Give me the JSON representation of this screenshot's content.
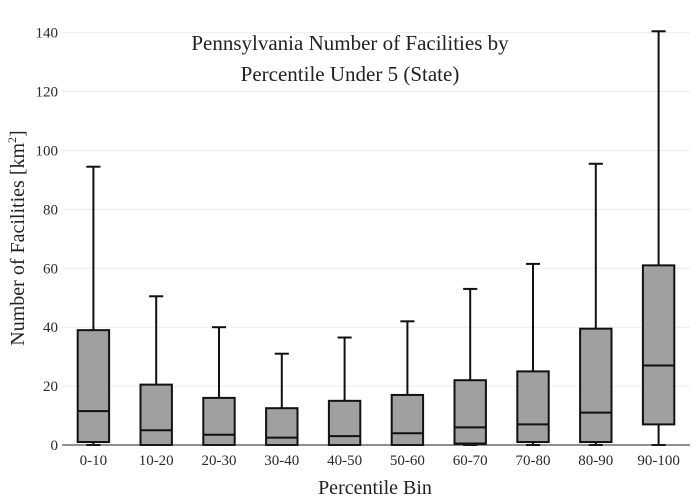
{
  "chart_data": {
    "type": "box",
    "title_lines": [
      "Pennsylvania Number of Facilities by",
      "Percentile Under 5 (State)"
    ],
    "xlabel": "Percentile Bin",
    "ylabel_main": "Number of Facilities  [km",
    "ylabel_sup": "2",
    "ylabel_close": "]",
    "ylim": [
      0,
      145
    ],
    "yticks": [
      0,
      20,
      40,
      60,
      80,
      100,
      120,
      140
    ],
    "grid": true,
    "colors": {
      "box_fill": "#a0a0a0",
      "box_stroke": "#111111",
      "grid": "#ececec"
    },
    "categories": [
      "0-10",
      "10-20",
      "20-30",
      "30-40",
      "40-50",
      "50-60",
      "60-70",
      "70-80",
      "80-90",
      "90-100"
    ],
    "boxes": [
      {
        "min": 0,
        "q1": 1,
        "median": 11.5,
        "q3": 39,
        "max": 94.5
      },
      {
        "min": 0,
        "q1": 0,
        "median": 5,
        "q3": 20.5,
        "max": 50.5
      },
      {
        "min": 0,
        "q1": 0,
        "median": 3.5,
        "q3": 16,
        "max": 40
      },
      {
        "min": 0,
        "q1": 0,
        "median": 2.5,
        "q3": 12.5,
        "max": 31
      },
      {
        "min": 0,
        "q1": 0,
        "median": 3,
        "q3": 15,
        "max": 36.5
      },
      {
        "min": 0,
        "q1": 0,
        "median": 4,
        "q3": 17,
        "max": 42
      },
      {
        "min": 0,
        "q1": 0.5,
        "median": 6,
        "q3": 22,
        "max": 53
      },
      {
        "min": 0,
        "q1": 1,
        "median": 7,
        "q3": 25,
        "max": 61.5
      },
      {
        "min": 0,
        "q1": 1,
        "median": 11,
        "q3": 39.5,
        "max": 95.5
      },
      {
        "min": 0,
        "q1": 7,
        "median": 27,
        "q3": 61,
        "max": 140.5
      }
    ]
  }
}
